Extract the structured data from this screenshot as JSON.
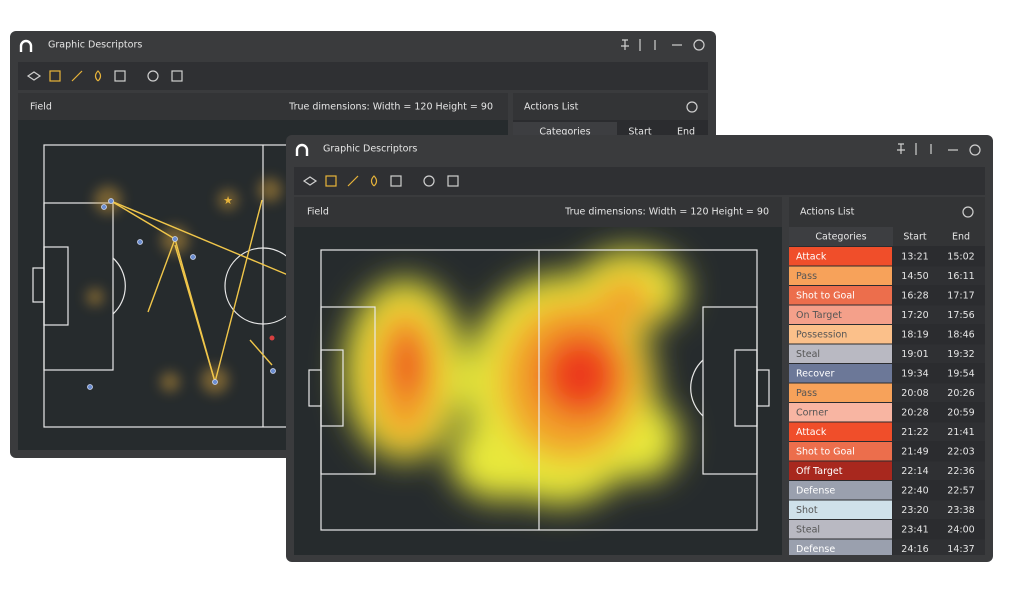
{
  "back_window": {
    "title": "Graphic Descriptors",
    "panel_title": "Field",
    "dimensions": "True dimensions: Width = 120  Height = 90",
    "list_title": "Actions List",
    "columns": [
      "Categories",
      "Start",
      "End"
    ]
  },
  "front_window": {
    "title": "Graphic Descriptors",
    "panel_title": "Field",
    "dimensions": "True dimensions: Width = 120  Height = 90",
    "list_title": "Actions List",
    "columns": [
      "Categories",
      "Start",
      "End"
    ],
    "rows": [
      {
        "category": "Attack",
        "start": "13:21",
        "end": "15:02",
        "color": "#f04e2a"
      },
      {
        "category": "Pass",
        "start": "14:50",
        "end": "16:11",
        "color": "#f7a25a"
      },
      {
        "category": "Shot to Goal",
        "start": "16:28",
        "end": "17:17",
        "color": "#ec6e4c"
      },
      {
        "category": "On Target",
        "start": "17:20",
        "end": "17:56",
        "color": "#f4a08a"
      },
      {
        "category": "Possession",
        "start": "18:19",
        "end": "18:46",
        "color": "#fbc08a"
      },
      {
        "category": "Steal",
        "start": "19:01",
        "end": "19:32",
        "color": "#b9b9c2"
      },
      {
        "category": "Recover",
        "start": "19:34",
        "end": "19:54",
        "color": "#6c7898"
      },
      {
        "category": "Pass",
        "start": "20:08",
        "end": "20:26",
        "color": "#f7a25a"
      },
      {
        "category": "Corner",
        "start": "20:28",
        "end": "20:59",
        "color": "#f8b5a2"
      },
      {
        "category": "Attack",
        "start": "21:22",
        "end": "21:41",
        "color": "#f04e2a"
      },
      {
        "category": "Shot to Goal",
        "start": "21:49",
        "end": "22:03",
        "color": "#ec6e4c"
      },
      {
        "category": "Off Target",
        "start": "22:14",
        "end": "22:36",
        "color": "#a8281e"
      },
      {
        "category": "Defense",
        "start": "22:40",
        "end": "22:57",
        "color": "#9aa0ae"
      },
      {
        "category": "Shot",
        "start": "23:20",
        "end": "23:38",
        "color": "#cfe1ea"
      },
      {
        "category": "Steal",
        "start": "23:41",
        "end": "24:00",
        "color": "#b9b9c2"
      },
      {
        "category": "Defense",
        "start": "24:16",
        "end": "14:37",
        "color": "#9aa0ae"
      }
    ]
  }
}
